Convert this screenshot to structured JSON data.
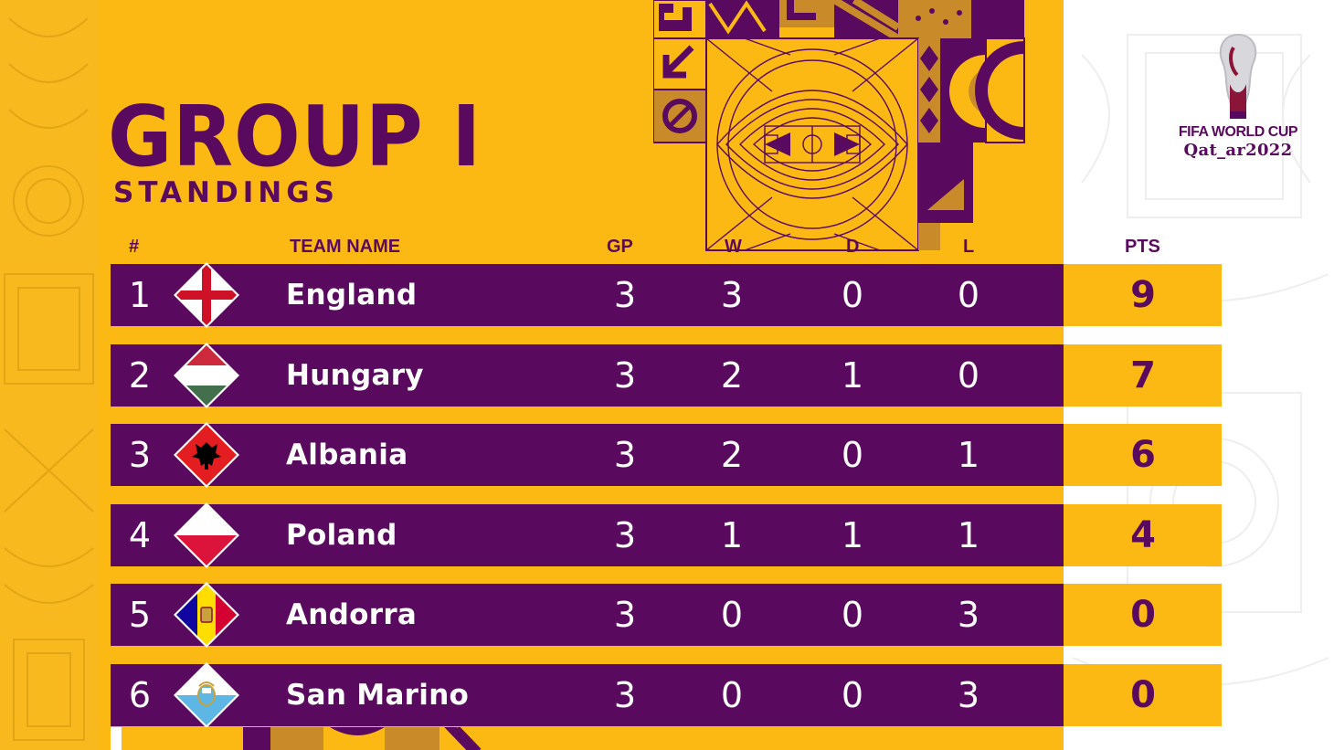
{
  "header": {
    "title": "GROUP I",
    "subtitle": "STANDINGS"
  },
  "logo": {
    "line1": "FIFA WORLD CUP",
    "line2": "Qat_ar2022"
  },
  "columns": {
    "rank": "#",
    "team": "TEAM NAME",
    "gp": "GP",
    "w": "W",
    "d": "D",
    "l": "L",
    "pts": "PTS"
  },
  "standings": [
    {
      "rank": "1",
      "team": "England",
      "gp": "3",
      "w": "3",
      "d": "0",
      "l": "0",
      "pts": "9",
      "flag": "england-flag-icon"
    },
    {
      "rank": "2",
      "team": "Hungary",
      "gp": "3",
      "w": "2",
      "d": "1",
      "l": "0",
      "pts": "7",
      "flag": "hungary-flag-icon"
    },
    {
      "rank": "3",
      "team": "Albania",
      "gp": "3",
      "w": "2",
      "d": "0",
      "l": "1",
      "pts": "6",
      "flag": "albania-flag-icon"
    },
    {
      "rank": "4",
      "team": "Poland",
      "gp": "3",
      "w": "1",
      "d": "1",
      "l": "1",
      "pts": "4",
      "flag": "poland-flag-icon"
    },
    {
      "rank": "5",
      "team": "Andorra",
      "gp": "3",
      "w": "0",
      "d": "0",
      "l": "3",
      "pts": "0",
      "flag": "andorra-flag-icon"
    },
    {
      "rank": "6",
      "team": "San Marino",
      "gp": "3",
      "w": "0",
      "d": "0",
      "l": "3",
      "pts": "0",
      "flag": "san-marino-flag-icon"
    }
  ],
  "colors": {
    "purple": "#5a0a5e",
    "gold": "#fdb913",
    "gold_dark": "#c98a2a",
    "white": "#ffffff"
  }
}
